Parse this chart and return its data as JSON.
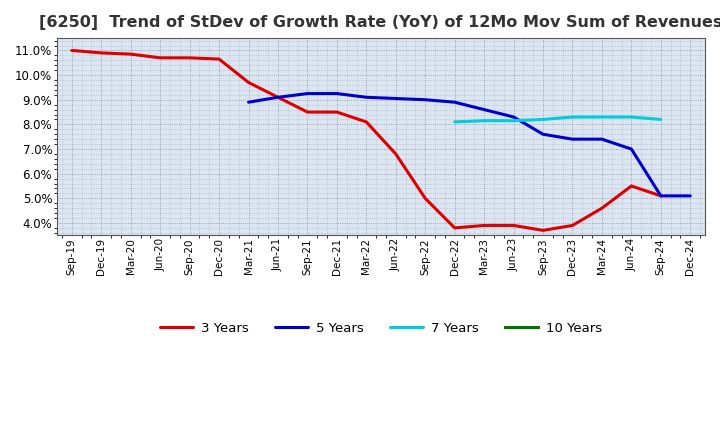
{
  "title": "[6250]  Trend of StDev of Growth Rate (YoY) of 12Mo Mov Sum of Revenues",
  "title_fontsize": 11.5,
  "ylim": [
    0.035,
    0.115
  ],
  "yticks": [
    0.04,
    0.05,
    0.06,
    0.07,
    0.08,
    0.09,
    0.1,
    0.11
  ],
  "background_color": "#ffffff",
  "plot_bg_color": "#dce6f0",
  "grid_color": "#8888aa",
  "series": {
    "3 Years": {
      "color": "#dd0000",
      "x": [
        "Sep-19",
        "Dec-19",
        "Mar-20",
        "Jun-20",
        "Sep-20",
        "Dec-20",
        "Mar-21",
        "Jun-21",
        "Sep-21",
        "Dec-21",
        "Mar-22",
        "Jun-22",
        "Sep-22",
        "Dec-22",
        "Mar-23",
        "Jun-23",
        "Sep-23",
        "Dec-23",
        "Mar-24",
        "Jun-24",
        "Sep-24"
      ],
      "y": [
        0.11,
        0.109,
        0.1085,
        0.107,
        0.107,
        0.1065,
        0.097,
        0.091,
        0.085,
        0.085,
        0.081,
        0.068,
        0.05,
        0.038,
        0.039,
        0.039,
        0.037,
        0.039,
        0.046,
        0.055,
        0.051
      ]
    },
    "5 Years": {
      "color": "#0000cc",
      "x": [
        "Mar-21",
        "Jun-21",
        "Sep-21",
        "Dec-21",
        "Mar-22",
        "Jun-22",
        "Sep-22",
        "Dec-22",
        "Mar-23",
        "Jun-23",
        "Sep-23",
        "Dec-23",
        "Mar-24",
        "Jun-24",
        "Sep-24",
        "Dec-24"
      ],
      "y": [
        0.089,
        0.091,
        0.0925,
        0.0925,
        0.091,
        0.0905,
        0.09,
        0.089,
        0.086,
        0.083,
        0.076,
        0.074,
        0.074,
        0.07,
        0.051,
        0.051
      ]
    },
    "7 Years": {
      "color": "#00ccdd",
      "x": [
        "Dec-22",
        "Mar-23",
        "Jun-23",
        "Sep-23",
        "Dec-23",
        "Mar-24",
        "Jun-24",
        "Sep-24"
      ],
      "y": [
        0.081,
        0.0815,
        0.0815,
        0.082,
        0.083,
        0.083,
        0.083,
        0.082
      ]
    },
    "10 Years": {
      "color": "#007700",
      "x": [],
      "y": []
    }
  },
  "xtick_labels": [
    "Sep-19",
    "Dec-19",
    "Mar-20",
    "Jun-20",
    "Sep-20",
    "Dec-20",
    "Mar-21",
    "Jun-21",
    "Sep-21",
    "Dec-21",
    "Mar-22",
    "Jun-22",
    "Sep-22",
    "Dec-22",
    "Mar-23",
    "Jun-23",
    "Sep-23",
    "Dec-23",
    "Mar-24",
    "Jun-24",
    "Sep-24",
    "Dec-24"
  ],
  "line_width": 2.2
}
